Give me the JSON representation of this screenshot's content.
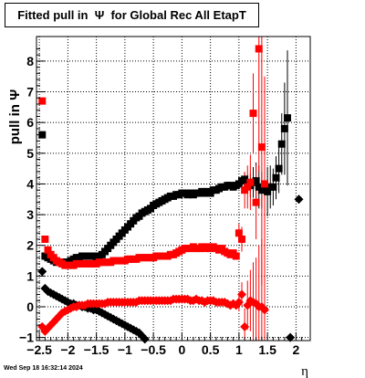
{
  "chart_data": {
    "type": "scatter",
    "title": "Fitted pull in  Ψ  for Global Rec All EtapT",
    "xlabel": "η",
    "ylabel": "pull in  Ψ",
    "xlim": [
      -2.55,
      2.25
    ],
    "ylim": [
      -1.1,
      8.8
    ],
    "x_ticks": [
      -2.5,
      -2,
      -1.5,
      -1,
      -0.5,
      0,
      0.5,
      1,
      1.5,
      2
    ],
    "x_tick_labels": [
      "−2.5",
      "−2",
      "−1.5",
      "−1",
      "−0.5",
      "0",
      "0.5",
      "1",
      "1.5",
      "2"
    ],
    "y_ticks": [
      -1,
      0,
      1,
      2,
      3,
      4,
      5,
      6,
      7,
      8
    ],
    "y_tick_labels": [
      "−1",
      "0",
      "1",
      "2",
      "3",
      "4",
      "5",
      "6",
      "7",
      "8"
    ],
    "grid": true,
    "colors": {
      "sigma": "#000000",
      "mean": "#ff0000"
    },
    "series": [
      {
        "marker": "square",
        "color": "#000000",
        "x": [
          -2.45,
          -2.4,
          -2.35,
          -2.3,
          -2.25,
          -2.2,
          -2.15,
          -2.1,
          -2.05,
          -2.0,
          -1.95,
          -1.9,
          -1.85,
          -1.8,
          -1.75,
          -1.7,
          -1.65,
          -1.6,
          -1.55,
          -1.5,
          -1.45,
          -1.4,
          -1.35,
          -1.3,
          -1.25,
          -1.2,
          -1.15,
          -1.1,
          -1.05,
          -1.0,
          -0.95,
          -0.9,
          -0.85,
          -0.8,
          -0.75,
          -0.7,
          -0.65,
          -0.6,
          -0.55,
          -0.5,
          -0.45,
          -0.4,
          -0.35,
          -0.3,
          -0.25,
          -0.2,
          -0.15,
          -0.1,
          -0.05,
          0.0,
          0.05,
          0.1,
          0.15,
          0.2,
          0.25,
          0.3,
          0.35,
          0.4,
          0.45,
          0.5,
          0.55,
          0.6,
          0.65,
          0.7,
          0.75,
          0.8,
          0.85,
          0.9,
          0.95,
          1.0,
          1.05,
          1.1,
          1.15,
          1.2,
          1.25,
          1.3,
          1.35,
          1.4,
          1.45,
          1.5,
          1.55,
          1.6,
          1.65,
          1.7,
          1.75,
          1.8,
          1.85
        ],
        "y": [
          5.6,
          1.65,
          1.6,
          1.55,
          1.5,
          1.45,
          1.45,
          1.45,
          1.45,
          1.45,
          1.5,
          1.55,
          1.6,
          1.6,
          1.65,
          1.65,
          1.65,
          1.65,
          1.65,
          1.6,
          1.65,
          1.7,
          1.8,
          1.9,
          2.0,
          2.1,
          2.2,
          2.3,
          2.4,
          2.5,
          2.6,
          2.7,
          2.8,
          2.9,
          2.95,
          3.05,
          3.1,
          3.15,
          3.2,
          3.3,
          3.35,
          3.4,
          3.45,
          3.5,
          3.55,
          3.6,
          3.6,
          3.65,
          3.65,
          3.7,
          3.7,
          3.65,
          3.7,
          3.65,
          3.7,
          3.7,
          3.75,
          3.7,
          3.75,
          3.7,
          3.8,
          3.8,
          3.85,
          3.9,
          3.9,
          3.95,
          3.95,
          3.9,
          3.95,
          4.0,
          4.1,
          4.15,
          4.0,
          3.95,
          4.05,
          4.1,
          3.9,
          3.8,
          3.85,
          3.75,
          3.9,
          3.9,
          4.2,
          4.5,
          5.3,
          5.8,
          6.15
        ],
        "err": [
          0,
          0,
          0,
          0,
          0,
          0,
          0,
          0,
          0,
          0,
          0,
          0,
          0,
          0,
          0,
          0,
          0,
          0,
          0,
          0,
          0,
          0,
          0,
          0,
          0,
          0,
          0,
          0,
          0,
          0,
          0,
          0,
          0,
          0,
          0,
          0,
          0,
          0,
          0,
          0,
          0,
          0,
          0,
          0,
          0,
          0,
          0,
          0,
          0,
          0,
          0,
          0,
          0,
          0,
          0,
          0,
          0,
          0,
          0,
          0,
          0,
          0,
          0,
          0,
          0,
          0,
          0,
          0,
          0,
          0.15,
          0.15,
          0.2,
          0.3,
          0.4,
          0.5,
          0.6,
          0.7,
          0.6,
          0.7,
          0.8,
          0.7,
          0.6,
          0.7,
          0.8,
          1.0,
          1.5,
          2.2
        ]
      },
      {
        "marker": "square",
        "color": "#ff0000",
        "x": [
          -2.45,
          -2.4,
          -2.35,
          -2.3,
          -2.25,
          -2.2,
          -2.15,
          -2.1,
          -2.05,
          -2.0,
          -1.95,
          -1.9,
          -1.85,
          -1.8,
          -1.75,
          -1.7,
          -1.65,
          -1.6,
          -1.55,
          -1.5,
          -1.45,
          -1.4,
          -1.35,
          -1.3,
          -1.25,
          -1.2,
          -1.15,
          -1.1,
          -1.05,
          -1.0,
          -0.95,
          -0.9,
          -0.85,
          -0.8,
          -0.75,
          -0.7,
          -0.65,
          -0.6,
          -0.55,
          -0.5,
          -0.45,
          -0.4,
          -0.35,
          -0.3,
          -0.25,
          -0.2,
          -0.15,
          -0.1,
          -0.05,
          0.0,
          0.05,
          0.1,
          0.15,
          0.2,
          0.25,
          0.3,
          0.35,
          0.4,
          0.45,
          0.5,
          0.55,
          0.6,
          0.65,
          0.7,
          0.75,
          0.8,
          0.85,
          0.9,
          0.95,
          1.0,
          1.05,
          1.1,
          1.15,
          1.2,
          1.25,
          1.3,
          1.35,
          1.4,
          1.45
        ],
        "y": [
          6.7,
          2.2,
          1.85,
          1.7,
          1.6,
          1.5,
          1.45,
          1.4,
          1.35,
          1.35,
          1.35,
          1.35,
          1.4,
          1.4,
          1.4,
          1.4,
          1.4,
          1.4,
          1.4,
          1.4,
          1.45,
          1.45,
          1.45,
          1.45,
          1.45,
          1.5,
          1.5,
          1.5,
          1.5,
          1.5,
          1.55,
          1.55,
          1.55,
          1.55,
          1.6,
          1.6,
          1.6,
          1.6,
          1.6,
          1.6,
          1.65,
          1.65,
          1.65,
          1.65,
          1.65,
          1.7,
          1.7,
          1.75,
          1.8,
          1.85,
          1.9,
          1.9,
          1.9,
          1.95,
          1.9,
          1.9,
          1.95,
          1.9,
          1.95,
          1.9,
          1.95,
          1.9,
          1.85,
          1.9,
          1.8,
          1.75,
          1.7,
          1.75,
          1.65,
          2.4,
          2.2,
          3.8,
          3.9,
          4.05,
          6.3,
          3.4,
          8.4,
          5.2,
          4.0
        ],
        "err": [
          0,
          0,
          0,
          0,
          0,
          0,
          0,
          0,
          0,
          0,
          0,
          0,
          0,
          0,
          0,
          0,
          0,
          0,
          0,
          0,
          0,
          0,
          0,
          0,
          0,
          0,
          0,
          0,
          0,
          0,
          0,
          0,
          0,
          0,
          0,
          0,
          0,
          0,
          0,
          0,
          0,
          0,
          0,
          0,
          0,
          0,
          0,
          0,
          0,
          0,
          0,
          0,
          0,
          0,
          0,
          0,
          0,
          0,
          0,
          0,
          0,
          0,
          0,
          0,
          0,
          0,
          0,
          0,
          0.1,
          0.3,
          0.4,
          0.6,
          0.7,
          0.9,
          1.3,
          1.2,
          4.0,
          4.5,
          3.5
        ]
      },
      {
        "marker": "diamond",
        "color": "#000000",
        "x": [
          -2.45,
          -2.4,
          -2.35,
          -2.3,
          -2.25,
          -2.2,
          -2.15,
          -2.1,
          -2.05,
          -2.0,
          -1.95,
          -1.9,
          -1.85,
          -1.8,
          -1.75,
          -1.7,
          -1.65,
          -1.6,
          -1.55,
          -1.5,
          -1.45,
          -1.4,
          -1.35,
          -1.3,
          -1.25,
          -1.2,
          -1.15,
          -1.1,
          -1.05,
          -1.0,
          -0.95,
          -0.9,
          -0.85,
          -0.8,
          -0.75,
          -0.7,
          -0.65,
          1.9,
          2.05
        ],
        "y": [
          1.15,
          0.6,
          0.5,
          0.45,
          0.4,
          0.35,
          0.3,
          0.25,
          0.2,
          0.15,
          0.1,
          0.1,
          0.05,
          0.05,
          0.0,
          0.0,
          -0.05,
          -0.05,
          -0.1,
          -0.1,
          -0.15,
          -0.2,
          -0.25,
          -0.3,
          -0.35,
          -0.4,
          -0.45,
          -0.5,
          -0.55,
          -0.6,
          -0.65,
          -0.7,
          -0.75,
          -0.8,
          -0.85,
          -0.95,
          -1.05,
          -1.0,
          3.5
        ],
        "err": [
          0,
          0,
          0,
          0,
          0,
          0,
          0,
          0,
          0,
          0,
          0,
          0,
          0,
          0,
          0,
          0,
          0,
          0,
          0,
          0,
          0,
          0,
          0,
          0,
          0,
          0,
          0,
          0,
          0,
          0,
          0,
          0,
          0,
          0,
          0,
          0,
          0,
          0,
          0
        ]
      },
      {
        "marker": "diamond",
        "color": "#ff0000",
        "x": [
          -2.45,
          -2.4,
          -2.35,
          -2.3,
          -2.25,
          -2.2,
          -2.15,
          -2.1,
          -2.05,
          -2.0,
          -1.95,
          -1.9,
          -1.85,
          -1.8,
          -1.75,
          -1.7,
          -1.65,
          -1.6,
          -1.55,
          -1.5,
          -1.45,
          -1.4,
          -1.35,
          -1.3,
          -1.25,
          -1.2,
          -1.15,
          -1.1,
          -1.05,
          -1.0,
          -0.95,
          -0.9,
          -0.85,
          -0.8,
          -0.75,
          -0.7,
          -0.65,
          -0.6,
          -0.55,
          -0.5,
          -0.45,
          -0.4,
          -0.35,
          -0.3,
          -0.25,
          -0.2,
          -0.15,
          -0.1,
          -0.05,
          0.0,
          0.05,
          0.1,
          0.15,
          0.2,
          0.25,
          0.3,
          0.35,
          0.4,
          0.45,
          0.5,
          0.55,
          0.6,
          0.65,
          0.7,
          0.75,
          0.8,
          0.85,
          0.9,
          0.95,
          1.0,
          1.05,
          1.1,
          1.15,
          1.2,
          1.25,
          1.3,
          1.35,
          1.4,
          1.45
        ],
        "y": [
          -0.65,
          -0.8,
          -0.7,
          -0.6,
          -0.5,
          -0.4,
          -0.3,
          -0.2,
          -0.15,
          -0.1,
          -0.05,
          0.0,
          0.0,
          0.05,
          0.05,
          0.05,
          0.1,
          0.1,
          0.1,
          0.1,
          0.1,
          0.1,
          0.1,
          0.15,
          0.15,
          0.15,
          0.15,
          0.15,
          0.15,
          0.15,
          0.15,
          0.15,
          0.15,
          0.15,
          0.2,
          0.2,
          0.2,
          0.2,
          0.2,
          0.2,
          0.2,
          0.2,
          0.2,
          0.2,
          0.2,
          0.2,
          0.25,
          0.25,
          0.25,
          0.25,
          0.25,
          0.25,
          0.2,
          0.2,
          0.25,
          0.2,
          0.2,
          0.15,
          0.2,
          0.2,
          0.2,
          0.15,
          0.15,
          0.15,
          0.15,
          0.1,
          0.05,
          0.1,
          0.05,
          0.15,
          0.4,
          -0.65,
          0.05,
          0.2,
          0.15,
          0.1,
          0.0,
          0.0,
          -0.1
        ],
        "err": [
          0,
          0,
          0,
          0,
          0,
          0,
          0,
          0,
          0,
          0,
          0,
          0,
          0,
          0,
          0,
          0,
          0,
          0,
          0,
          0,
          0,
          0,
          0,
          0,
          0,
          0,
          0,
          0,
          0,
          0,
          0,
          0,
          0,
          0,
          0,
          0,
          0,
          0,
          0,
          0,
          0,
          0,
          0,
          0,
          0,
          0,
          0,
          0,
          0,
          0,
          0,
          0,
          0,
          0,
          0,
          0,
          0,
          0,
          0,
          0,
          0,
          0,
          0,
          0,
          0,
          0,
          0,
          0,
          0.1,
          0.3,
          0.4,
          0.6,
          0.8,
          1.0,
          1.3,
          1.5,
          2.0,
          2.2,
          2.5
        ]
      }
    ]
  },
  "footer": {
    "timestamp": "Wed Sep 18 16:32:14 2024"
  }
}
